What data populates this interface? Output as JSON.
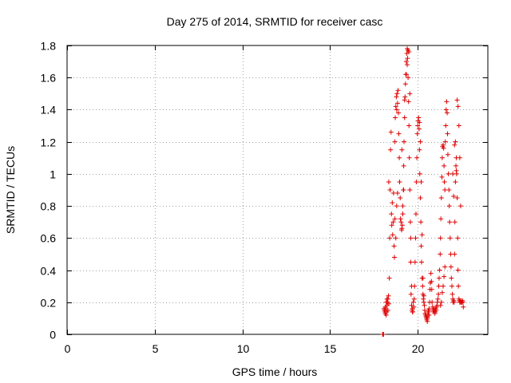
{
  "chart_data": {
    "type": "scatter",
    "title": "Day 275 of 2014, SRMTID for receiver casc",
    "xlabel": "GPS time / hours",
    "ylabel": "SRMTID / TECUs",
    "xlim": [
      0,
      24
    ],
    "ylim": [
      0,
      1.8
    ],
    "xticks": [
      0,
      5,
      10,
      15,
      20
    ],
    "xtick_labels": [
      "0",
      "5",
      "10",
      "15",
      "20"
    ],
    "yticks": [
      0,
      0.2,
      0.4,
      0.6,
      0.8,
      1,
      1.2,
      1.4,
      1.6,
      1.8
    ],
    "ytick_labels": [
      "0",
      "0.2",
      "0.4",
      "0.6",
      "0.8",
      "1",
      "1.2",
      "1.4",
      "1.6",
      "1.8"
    ],
    "grid": true,
    "marker": "+",
    "color": "#e00000",
    "series": [
      {
        "name": "SRMTID",
        "x": [
          18.0,
          18.02,
          18.05,
          18.08,
          18.1,
          18.13,
          18.15,
          18.18,
          18.2,
          18.23,
          18.25,
          18.28,
          18.3,
          18.33,
          18.35,
          18.38,
          18.4,
          18.42,
          18.45,
          18.48,
          18.5,
          18.52,
          18.55,
          18.57,
          18.6,
          18.62,
          18.65,
          18.67,
          18.7,
          18.72,
          18.75,
          18.78,
          18.8,
          18.82,
          18.85,
          18.88,
          18.9,
          18.92,
          18.95,
          18.97,
          19.0,
          19.02,
          19.05,
          19.08,
          19.1,
          19.12,
          19.15,
          19.18,
          19.2,
          19.22,
          19.25,
          19.28,
          19.3,
          19.32,
          19.35,
          19.38,
          19.4,
          19.42,
          19.45,
          19.48,
          19.5,
          19.52,
          19.55,
          19.58,
          19.6,
          19.62,
          19.65,
          19.68,
          19.7,
          19.72,
          19.75,
          19.78,
          19.8,
          19.82,
          19.85,
          19.88,
          19.9,
          19.92,
          19.95,
          19.98,
          20.0,
          20.02,
          20.05,
          20.08,
          20.1,
          20.12,
          20.15,
          20.18,
          20.2,
          20.22,
          20.25,
          20.28,
          20.3,
          20.32,
          20.35,
          20.38,
          20.4,
          20.42,
          20.45,
          20.48,
          20.5,
          20.52,
          20.55,
          20.58,
          20.6,
          20.62,
          20.65,
          20.68,
          20.7,
          20.72,
          20.75,
          20.78,
          20.8,
          20.82,
          20.85,
          20.88,
          20.9,
          20.92,
          20.95,
          20.98,
          21.0,
          21.02,
          21.05,
          21.08,
          21.1,
          21.12,
          21.15,
          21.18,
          21.2,
          21.22,
          21.25,
          21.28,
          21.3,
          21.32,
          21.35,
          21.38,
          21.4,
          21.42,
          21.45,
          21.48,
          21.5,
          21.52,
          21.55,
          21.58,
          21.6,
          21.62,
          21.65,
          21.68,
          21.7,
          21.72,
          21.75,
          21.78,
          21.8,
          21.82,
          21.85,
          21.88,
          21.9,
          21.92,
          21.95,
          21.98,
          22.0,
          22.02,
          22.05,
          22.08,
          22.1,
          22.12,
          22.15,
          22.18,
          22.2,
          22.22,
          22.25,
          22.28,
          22.3,
          22.32,
          22.35,
          22.38,
          22.4,
          22.42,
          22.45,
          22.48,
          22.5,
          22.52,
          22.55,
          22.58,
          22.6,
          18.15,
          18.2,
          18.25,
          18.3,
          18.35,
          18.7,
          18.75,
          18.8,
          18.85,
          19.1,
          19.15,
          19.2,
          19.25,
          19.35,
          19.4,
          19.45,
          19.5,
          19.55,
          19.6,
          19.65,
          19.7,
          20.1,
          20.15,
          20.2,
          20.25,
          20.3,
          20.35,
          20.5,
          20.55,
          20.6,
          20.65,
          21.3,
          21.35,
          21.4,
          21.45,
          21.5,
          21.55,
          22.0,
          22.05,
          22.1,
          22.15,
          22.2,
          22.25,
          22.3,
          22.35,
          22.4,
          22.45
        ],
        "y": [
          0.0,
          0.0,
          0.0,
          0.16,
          0.15,
          0.14,
          0.17,
          0.16,
          0.12,
          0.14,
          0.18,
          0.2,
          0.22,
          0.24,
          0.19,
          0.35,
          0.6,
          0.9,
          1.15,
          1.26,
          0.75,
          0.68,
          0.82,
          0.62,
          0.7,
          0.88,
          0.55,
          0.48,
          1.2,
          1.35,
          1.42,
          1.48,
          1.4,
          1.5,
          1.44,
          1.52,
          1.38,
          1.25,
          1.1,
          0.95,
          0.85,
          0.72,
          0.7,
          0.65,
          0.66,
          0.68,
          0.8,
          0.9,
          1.05,
          1.2,
          1.35,
          1.48,
          1.56,
          1.62,
          1.7,
          1.75,
          1.78,
          1.72,
          1.6,
          1.45,
          1.3,
          1.1,
          0.9,
          0.7,
          0.45,
          0.25,
          0.18,
          0.15,
          0.16,
          0.14,
          0.2,
          0.17,
          0.22,
          0.3,
          0.45,
          0.6,
          0.75,
          0.95,
          1.1,
          1.25,
          1.3,
          1.33,
          1.35,
          1.28,
          1.15,
          1.0,
          0.85,
          0.7,
          0.55,
          0.45,
          0.35,
          0.3,
          0.25,
          0.22,
          0.2,
          0.18,
          0.15,
          0.13,
          0.12,
          0.11,
          0.1,
          0.09,
          0.1,
          0.12,
          0.14,
          0.15,
          0.16,
          0.2,
          0.28,
          0.32,
          0.38,
          0.33,
          0.28,
          0.2,
          0.17,
          0.15,
          0.14,
          0.16,
          0.15,
          0.13,
          0.14,
          0.16,
          0.15,
          0.17,
          0.18,
          0.2,
          0.22,
          0.25,
          0.3,
          0.35,
          0.4,
          0.5,
          0.6,
          0.72,
          0.85,
          0.98,
          1.1,
          1.17,
          1.18,
          1.16,
          1.05,
          0.95,
          0.9,
          1.2,
          1.3,
          1.4,
          1.45,
          1.38,
          1.25,
          1.12,
          1.0,
          0.9,
          0.8,
          0.7,
          0.6,
          0.5,
          0.42,
          0.35,
          0.3,
          0.25,
          0.22,
          0.2,
          0.21,
          0.2,
          0.5,
          0.7,
          0.95,
          1.05,
          1.1,
          1.0,
          0.85,
          0.6,
          0.4,
          0.3,
          0.22,
          0.21,
          0.2,
          0.2,
          0.21,
          0.2,
          0.2,
          0.2,
          0.21,
          0.2,
          0.17,
          0.13,
          0.2,
          0.22,
          0.15,
          0.95,
          0.72,
          0.6,
          0.8,
          0.88,
          1.15,
          0.75,
          0.9,
          1.46,
          1.62,
          1.68,
          1.77,
          1.76,
          1.5,
          0.6,
          0.3,
          0.14,
          1.32,
          1.2,
          0.95,
          0.62,
          0.35,
          0.24,
          0.11,
          0.08,
          0.14,
          0.12,
          0.18,
          0.2,
          0.26,
          0.3,
          0.36,
          0.42,
          1.0,
          0.86,
          1.18,
          1.2,
          1.02,
          1.46,
          1.42,
          1.3,
          1.1,
          0.8
        ]
      }
    ]
  }
}
